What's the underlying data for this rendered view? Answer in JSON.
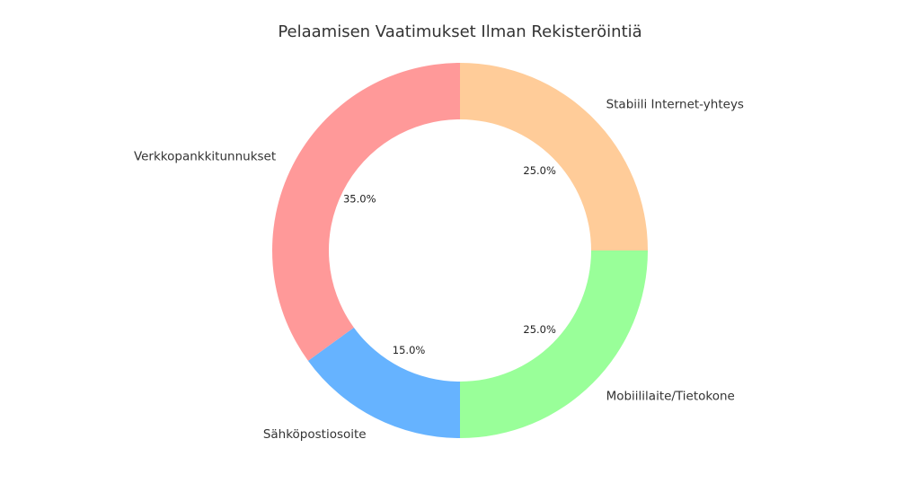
{
  "chart_data": {
    "type": "donut",
    "title": "Pelaamisen Vaatimukset Ilman Rekisteröintiä",
    "categories": [
      "Stabiili Internet-yhteys",
      "Mobiililaite/Tietokone",
      "Sähköpostiosoite",
      "Verkkopankkitunnukset"
    ],
    "values": [
      25,
      25,
      15,
      35
    ],
    "value_labels": [
      "25.0%",
      "25.0%",
      "15.0%",
      "35.0%"
    ],
    "colors": [
      "#ffcc99",
      "#99ff99",
      "#66b3ff",
      "#ff9999"
    ]
  }
}
